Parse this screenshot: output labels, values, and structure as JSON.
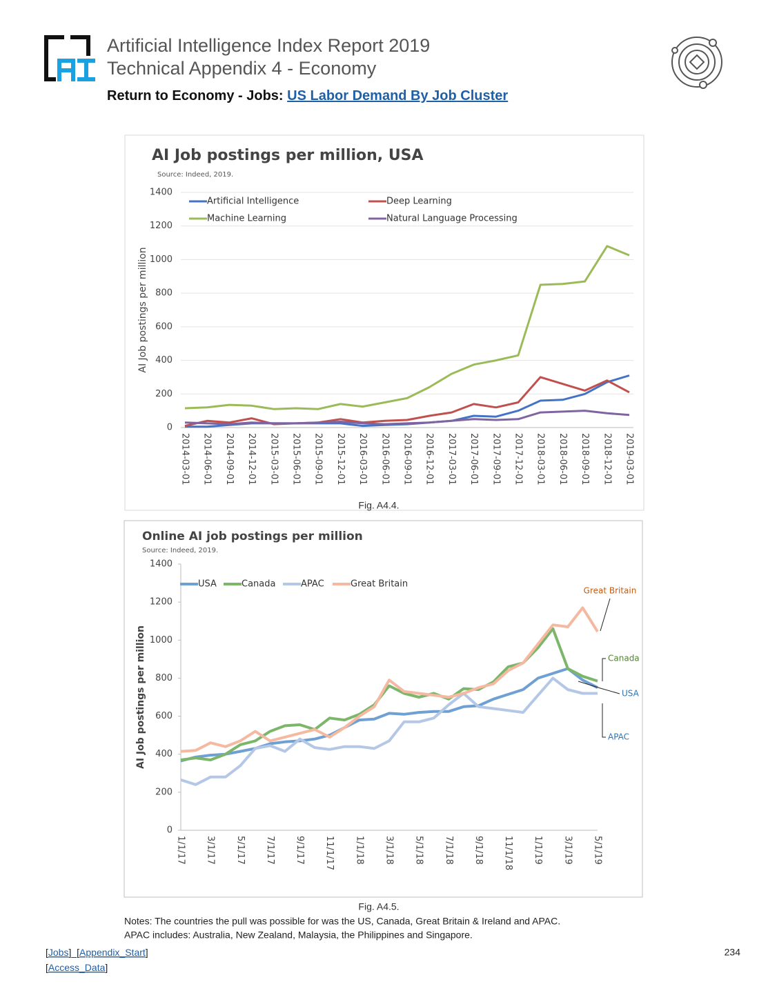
{
  "header": {
    "title_line1": "Artificial Intelligence Index Report 2019",
    "title_line2": "Technical Appendix 4 - Economy",
    "nav_prefix": "Return to Economy - Jobs:",
    "nav_link": "US Labor Demand By Job Cluster"
  },
  "chart_data": [
    {
      "type": "line",
      "title": "AI Job postings per million, USA",
      "subtitle": "Source: Indeed, 2019.",
      "y_label": "AI Job postings per million",
      "categories": [
        "2014-03-01",
        "2014-06-01",
        "2014-09-01",
        "2014-12-01",
        "2015-03-01",
        "2015-06-01",
        "2015-09-01",
        "2015-12-01",
        "2016-03-01",
        "2016-06-01",
        "2016-09-01",
        "2016-12-01",
        "2017-03-01",
        "2017-06-01",
        "2017-09-01",
        "2017-12-01",
        "2018-03-01",
        "2018-06-01",
        "2018-09-01",
        "2018-12-01",
        "2019-03-01"
      ],
      "ylim": [
        0,
        1400
      ],
      "yticks": [
        0,
        200,
        400,
        600,
        800,
        1000,
        1200,
        1400
      ],
      "grid": true,
      "series": [
        {
          "name": "Artificial Intelligence",
          "color": "#4472c4",
          "values": [
            5,
            5,
            15,
            25,
            25,
            25,
            25,
            25,
            10,
            15,
            20,
            30,
            40,
            70,
            65,
            100,
            160,
            165,
            200,
            270,
            310
          ]
        },
        {
          "name": "Deep Learning",
          "color": "#c0504d",
          "values": [
            10,
            40,
            30,
            55,
            20,
            25,
            30,
            50,
            30,
            40,
            45,
            70,
            90,
            140,
            120,
            150,
            300,
            260,
            220,
            280,
            210
          ]
        },
        {
          "name": "Machine Learning",
          "color": "#9bbb59",
          "values": [
            115,
            120,
            135,
            130,
            110,
            115,
            110,
            140,
            125,
            150,
            175,
            240,
            320,
            375,
            400,
            430,
            850,
            855,
            870,
            1080,
            1025
          ]
        },
        {
          "name": "Natural Language Processing",
          "color": "#8064a2",
          "values": [
            30,
            25,
            20,
            30,
            25,
            25,
            30,
            35,
            25,
            20,
            25,
            30,
            40,
            50,
            45,
            50,
            90,
            95,
            100,
            85,
            75
          ]
        }
      ]
    },
    {
      "type": "line",
      "title": "Online AI job postings per million",
      "subtitle": "Source: Indeed, 2019.",
      "y_label": "AI Job postings per million",
      "categories": [
        "1/1/17",
        null,
        "3/1/17",
        null,
        "5/1/17",
        null,
        "7/1/17",
        null,
        "9/1/17",
        null,
        "11/1/17",
        null,
        "1/1/18",
        null,
        "3/1/18",
        null,
        "5/1/18",
        null,
        "7/1/18",
        null,
        "9/1/18",
        null,
        "11/1/18",
        null,
        "1/1/19",
        null,
        "3/1/19",
        null,
        "5/1/19"
      ],
      "ylim": [
        0,
        1400
      ],
      "yticks": [
        0,
        200,
        400,
        600,
        800,
        1000,
        1200,
        1400
      ],
      "grid": false,
      "series": [
        {
          "name": "USA",
          "color": "#6fa0d4",
          "values": [
            365,
            385,
            395,
            400,
            415,
            430,
            455,
            465,
            470,
            480,
            500,
            540,
            580,
            585,
            615,
            610,
            620,
            625,
            625,
            650,
            655,
            690,
            715,
            740,
            800,
            825,
            850,
            790,
            750
          ]
        },
        {
          "name": "Canada",
          "color": "#7cb66b",
          "values": [
            370,
            380,
            370,
            400,
            450,
            470,
            520,
            550,
            555,
            530,
            590,
            580,
            610,
            660,
            760,
            720,
            700,
            720,
            690,
            745,
            740,
            780,
            860,
            880,
            960,
            1060,
            850,
            810,
            785
          ]
        },
        {
          "name": "APAC",
          "color": "#b4c7e7",
          "values": [
            265,
            240,
            280,
            280,
            340,
            430,
            445,
            415,
            480,
            435,
            425,
            440,
            440,
            430,
            470,
            570,
            570,
            590,
            660,
            720,
            650,
            640,
            630,
            620,
            710,
            800,
            740,
            720,
            720
          ]
        },
        {
          "name": "Great Britain",
          "color": "#f4b9a0",
          "values": [
            415,
            420,
            460,
            440,
            470,
            520,
            470,
            490,
            510,
            530,
            490,
            540,
            600,
            650,
            790,
            730,
            720,
            710,
            700,
            720,
            750,
            770,
            840,
            880,
            980,
            1080,
            1070,
            1170,
            1045
          ]
        }
      ],
      "annotations": [
        {
          "text": "Great Britain",
          "color": "#c55a11"
        },
        {
          "text": "Canada",
          "color": "#548235"
        },
        {
          "text": "USA",
          "color": "#2e75b6"
        },
        {
          "text": "APAC",
          "color": "#2e75b6"
        }
      ]
    }
  ],
  "captions": [
    "Fig. A4.4.",
    "Fig. A4.5."
  ],
  "notes": [
    "Notes: The countries the pull was possible for was the US, Canada, Great Britain & Ireland and APAC.",
    "APAC includes: Australia, New Zealand, Malaysia, the Philippines and Singapore."
  ],
  "footer": {
    "line1": [
      "[",
      "Jobs",
      "]_[",
      "Appendix_Start",
      "]"
    ],
    "line2": [
      "[",
      "Access_Data",
      "]"
    ],
    "page_number": "234"
  }
}
